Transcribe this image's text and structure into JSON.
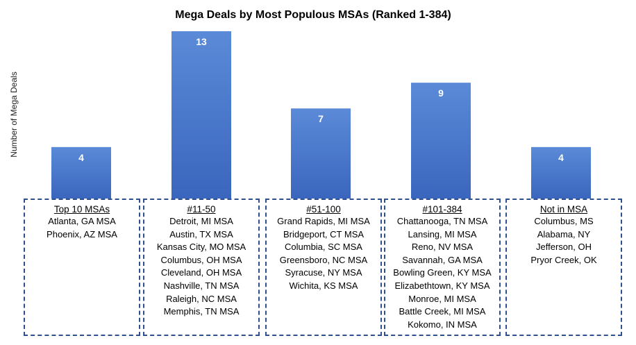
{
  "chart_data": {
    "type": "bar",
    "title": "Mega Deals by Most Populous MSAs (Ranked 1-384)",
    "xlabel": "",
    "ylabel": "Number of Mega Deals",
    "ylim": [
      0,
      13
    ],
    "bar_color": "#4472c4",
    "bar_color_light": "#5b8ad8",
    "label_color": "#ffffff",
    "border_color": "#2e4f8e",
    "categories": [
      "Top 10 MSAs",
      "#11-50",
      "#51-100",
      "#101-384",
      "Not in MSA"
    ],
    "values": [
      4,
      13,
      7,
      9,
      4
    ],
    "data_labels": [
      "4",
      "13",
      "7",
      "9",
      "4"
    ]
  },
  "groups": [
    {
      "title": "Top 10 MSAs",
      "items": [
        "Atlanta, GA MSA",
        "Phoenix, AZ MSA"
      ]
    },
    {
      "title": "#11-50",
      "items": [
        "Detroit, MI MSA",
        "Austin, TX MSA",
        "Kansas City, MO MSA",
        "Columbus, OH MSA",
        "Cleveland, OH MSA",
        "Nashville, TN MSA",
        "Raleigh, NC MSA",
        "Memphis, TN MSA"
      ]
    },
    {
      "title": "#51-100",
      "items": [
        "Grand Rapids, MI MSA",
        "Bridgeport, CT MSA",
        "Columbia, SC MSA",
        "Greensboro, NC MSA",
        "Syracuse, NY MSA",
        "Wichita, KS MSA"
      ]
    },
    {
      "title": "#101-384",
      "items": [
        "Chattanooga, TN MSA",
        "Lansing, MI MSA",
        "Reno, NV MSA",
        "Savannah, GA MSA",
        "Bowling Green, KY MSA",
        "Elizabethtown, KY MSA",
        "Monroe, MI MSA",
        "Battle Creek, MI MSA",
        "Kokomo, IN MSA"
      ]
    },
    {
      "title": "Not in MSA",
      "items": [
        "Columbus, MS",
        "Alabama, NY",
        "Jefferson, OH",
        "Pryor Creek, OK"
      ]
    }
  ]
}
